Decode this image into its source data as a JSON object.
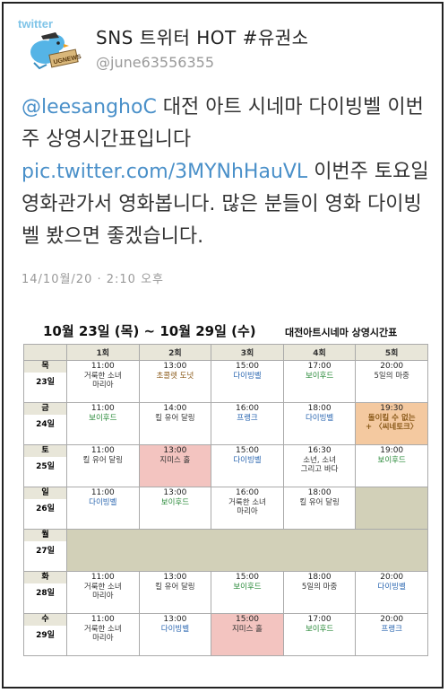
{
  "tweet_header": {
    "avatar_text": "twitter",
    "avatar_badge": "UGNEWS",
    "display_name": "SNS 트위터 HOT #유권소",
    "username": "@june63556355"
  },
  "tweet": {
    "mention": "@leesanghoC",
    "text_1": " 대전 아트 시네마 다이빙벨 이번주 상영시간표입니다 ",
    "link": "pic.twitter.com/3MYNhHauVL",
    "text_2": " 이번주 토요일 영화관가서 영화봅니다. 많은 분들이 영화 다이빙벨 봤으면 좋겠습니다.",
    "timestamp": "14/10월/20 · 2:10 오후"
  },
  "schedule": {
    "title": "10월 23일 (목) ~ 10월 29일 (수)",
    "subtitle": "대전아트시네마 상영시간표",
    "columns": [
      "1회",
      "2회",
      "3회",
      "4회",
      "5회"
    ],
    "days": [
      {
        "day": "목",
        "date": "23일",
        "closed": false,
        "cells": [
          {
            "time": "11:00",
            "movie": "거룩한 소녀\n마리아",
            "cls": ""
          },
          {
            "time": "13:00",
            "movie": "초콜렛 도넛",
            "cls": "brown"
          },
          {
            "time": "15:00",
            "movie": "다이빙벨",
            "cls": "blue"
          },
          {
            "time": "17:00",
            "movie": "보이후드",
            "cls": "green"
          },
          {
            "time": "20:00",
            "movie": "5일의 마중",
            "cls": ""
          }
        ]
      },
      {
        "day": "금",
        "date": "24일",
        "closed": false,
        "cells": [
          {
            "time": "11:00",
            "movie": "보이후드",
            "cls": "green"
          },
          {
            "time": "14:00",
            "movie": "킬 유어 달링",
            "cls": ""
          },
          {
            "time": "16:00",
            "movie": "프랭크",
            "cls": "blue"
          },
          {
            "time": "18:00",
            "movie": "다이빙벨",
            "cls": "blue"
          },
          {
            "time": "19:30",
            "movie": "돌이킬 수 없는\n+ 〈씨네토크〉",
            "cls": "brown bold",
            "bg": "orange"
          }
        ]
      },
      {
        "day": "토",
        "date": "25일",
        "closed": false,
        "cells": [
          {
            "time": "11:00",
            "movie": "킬 유어 달링",
            "cls": ""
          },
          {
            "time": "13:00",
            "movie": "지미스 홀",
            "cls": "",
            "bg": "pink"
          },
          {
            "time": "15:00",
            "movie": "다이빙벨",
            "cls": "blue"
          },
          {
            "time": "16:30",
            "movie": "소년, 소녀\n그리고 바다",
            "cls": ""
          },
          {
            "time": "19:00",
            "movie": "보이후드",
            "cls": "green"
          }
        ]
      },
      {
        "day": "일",
        "date": "26일",
        "closed": false,
        "cells": [
          {
            "time": "11:00",
            "movie": "다이빙벨",
            "cls": "blue"
          },
          {
            "time": "13:00",
            "movie": "보이후드",
            "cls": "green"
          },
          {
            "time": "16:00",
            "movie": "거룩한 소녀\n마리아",
            "cls": ""
          },
          {
            "time": "18:00",
            "movie": "킬 유어 달링",
            "cls": ""
          },
          {
            "time": "",
            "movie": "",
            "cls": "",
            "bg": "closed"
          }
        ]
      },
      {
        "day": "월",
        "date": "27일",
        "closed": true,
        "cells": []
      },
      {
        "day": "화",
        "date": "28일",
        "closed": false,
        "cells": [
          {
            "time": "11:00",
            "movie": "거룩한 소녀\n마리아",
            "cls": ""
          },
          {
            "time": "13:00",
            "movie": "킬 유어 달링",
            "cls": ""
          },
          {
            "time": "15:00",
            "movie": "보이후드",
            "cls": "green"
          },
          {
            "time": "18:00",
            "movie": "5일의 마중",
            "cls": ""
          },
          {
            "time": "20:00",
            "movie": "다이빙벨",
            "cls": "blue"
          }
        ]
      },
      {
        "day": "수",
        "date": "29일",
        "closed": false,
        "cells": [
          {
            "time": "11:00",
            "movie": "거룩한 소녀\n마리아",
            "cls": ""
          },
          {
            "time": "13:00",
            "movie": "다이빙벨",
            "cls": "blue"
          },
          {
            "time": "15:00",
            "movie": "지미스 홀",
            "cls": "",
            "bg": "pink"
          },
          {
            "time": "17:00",
            "movie": "보이후드",
            "cls": "green"
          },
          {
            "time": "20:00",
            "movie": "프랭크",
            "cls": "blue"
          }
        ]
      }
    ]
  },
  "colors": {
    "link": "#4a90c9",
    "header_bg": "#e8e6d9",
    "closed_bg": "#d2d0b8",
    "pink_bg": "#f3c4c0",
    "orange_bg": "#f4c9a0"
  }
}
